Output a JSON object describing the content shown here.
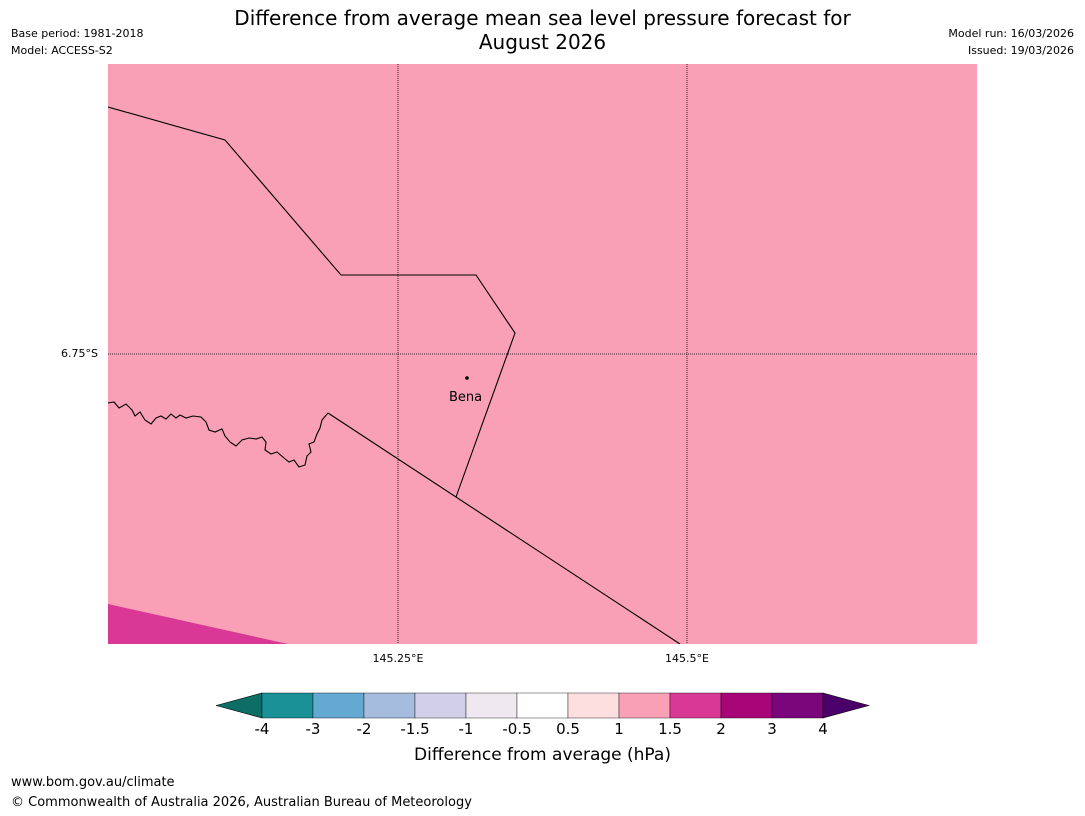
{
  "header": {
    "base_period": "Base period: 1981-2018",
    "model": "Model: ACCESS-S2",
    "title_line1": "Difference from average mean sea level pressure forecast for",
    "title_line2": "August 2026",
    "model_run": "Model run: 16/03/2026",
    "issued": "Issued: 19/03/2026"
  },
  "map": {
    "background_color": "#f99fb6",
    "lat_label": "6.75°S",
    "lon_labels": [
      "145.25°E",
      "145.5°E"
    ],
    "place": {
      "name": "Bena"
    }
  },
  "colorbar": {
    "colors": [
      "#0c6e64",
      "#1a9097",
      "#64a9d2",
      "#a6bcdf",
      "#d1d0e8",
      "#efe8f0",
      "#ffffff",
      "#fddfe0",
      "#f99fb6",
      "#d93897",
      "#a80579",
      "#7b067b",
      "#4a0068"
    ],
    "ticks": [
      "-4",
      "-3",
      "-2",
      "-1.5",
      "-1",
      "-0.5",
      "0.5",
      "1",
      "1.5",
      "2",
      "3",
      "4"
    ],
    "label": "Difference from average (hPa)"
  },
  "footer": {
    "url": "www.bom.gov.au/climate",
    "copyright": "© Commonwealth of Australia 2026, Australian Bureau of Meteorology"
  }
}
